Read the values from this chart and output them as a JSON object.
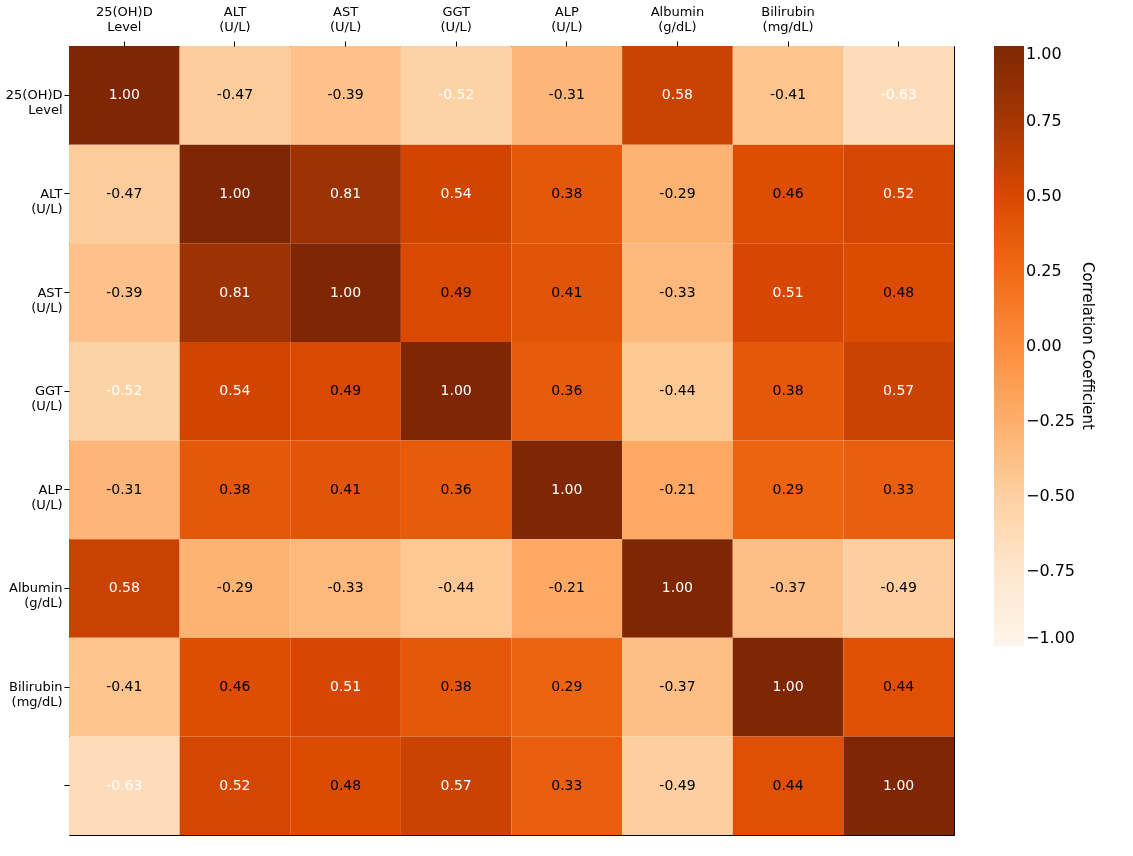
{
  "chart_data": {
    "type": "heatmap",
    "categories": [
      "25(OH)D Level",
      "ALT (U/L)",
      "AST (U/L)",
      "GGT (U/L)",
      "ALP (U/L)",
      "Albumin (g/dL)",
      "Bilirubin (mg/dL)",
      null
    ],
    "y_categories": [
      "25(OH)D Level",
      "ALT (U/L)",
      "AST (U/L)",
      "GGT (U/L)",
      "ALP (U/L)",
      "Albumin (g/dL)",
      "Bilirubin (mg/dL)",
      null
    ],
    "cells": [
      [
        1.0,
        -0.47,
        -0.39,
        -0.52,
        -0.31,
        0.58,
        -0.41,
        -0.63
      ],
      [
        -0.47,
        1.0,
        0.81,
        0.54,
        0.38,
        -0.29,
        0.46,
        0.52
      ],
      [
        -0.39,
        0.81,
        1.0,
        0.49,
        0.41,
        -0.33,
        0.51,
        0.48
      ],
      [
        -0.52,
        0.54,
        0.49,
        1.0,
        0.36,
        -0.44,
        0.38,
        0.57
      ],
      [
        -0.31,
        0.38,
        0.41,
        0.36,
        1.0,
        -0.21,
        0.29,
        0.33
      ],
      [
        0.58,
        -0.29,
        -0.33,
        -0.44,
        -0.21,
        1.0,
        -0.37,
        -0.49
      ],
      [
        -0.41,
        0.46,
        0.51,
        0.38,
        0.29,
        -0.37,
        1.0,
        0.44
      ],
      [
        -0.63,
        0.52,
        0.48,
        0.57,
        0.33,
        -0.49,
        0.44,
        1.0
      ]
    ],
    "cell_labels": [
      [
        "1.00",
        "-0.47",
        "-0.39",
        "-0.52",
        "-0.31",
        "0.58",
        "-0.41",
        "-0.63"
      ],
      [
        "-0.47",
        "1.00",
        "0.81",
        "0.54",
        "0.38",
        "-0.29",
        "0.46",
        "0.52"
      ],
      [
        "-0.39",
        "0.81",
        "1.00",
        "0.49",
        "0.41",
        "-0.33",
        "0.51",
        "0.48"
      ],
      [
        "-0.52",
        "0.54",
        "0.49",
        "1.00",
        "0.36",
        "-0.44",
        "0.38",
        "0.57"
      ],
      [
        "-0.31",
        "0.38",
        "0.41",
        "0.36",
        "1.00",
        "-0.21",
        "0.29",
        "0.33"
      ],
      [
        "0.58",
        "-0.29",
        "-0.33",
        "-0.44",
        "-0.21",
        "1.00",
        "-0.37",
        "-0.49"
      ],
      [
        "-0.41",
        "0.46",
        "0.51",
        "0.38",
        "0.29",
        "-0.37",
        "1.00",
        "0.44"
      ],
      [
        "-0.63",
        "0.52",
        "0.48",
        "0.57",
        "0.33",
        "-0.49",
        "0.44",
        "1.00"
      ]
    ],
    "clabel": "Correlation Coefficient",
    "clim": [
      -1,
      1
    ],
    "cticks": [
      {
        "value": 1,
        "label": "1.00"
      },
      {
        "value": 0.75,
        "label": "0.75"
      },
      {
        "value": 0.5,
        "label": "0.50"
      },
      {
        "value": 0.25,
        "label": "0.25"
      },
      {
        "value": 0,
        "label": "0.00"
      },
      {
        "value": -0.25,
        "label": "−0.25"
      },
      {
        "value": -0.5,
        "label": "−0.50"
      },
      {
        "value": -0.75,
        "label": "−0.75"
      },
      {
        "value": -1,
        "label": "−1.00"
      }
    ]
  }
}
